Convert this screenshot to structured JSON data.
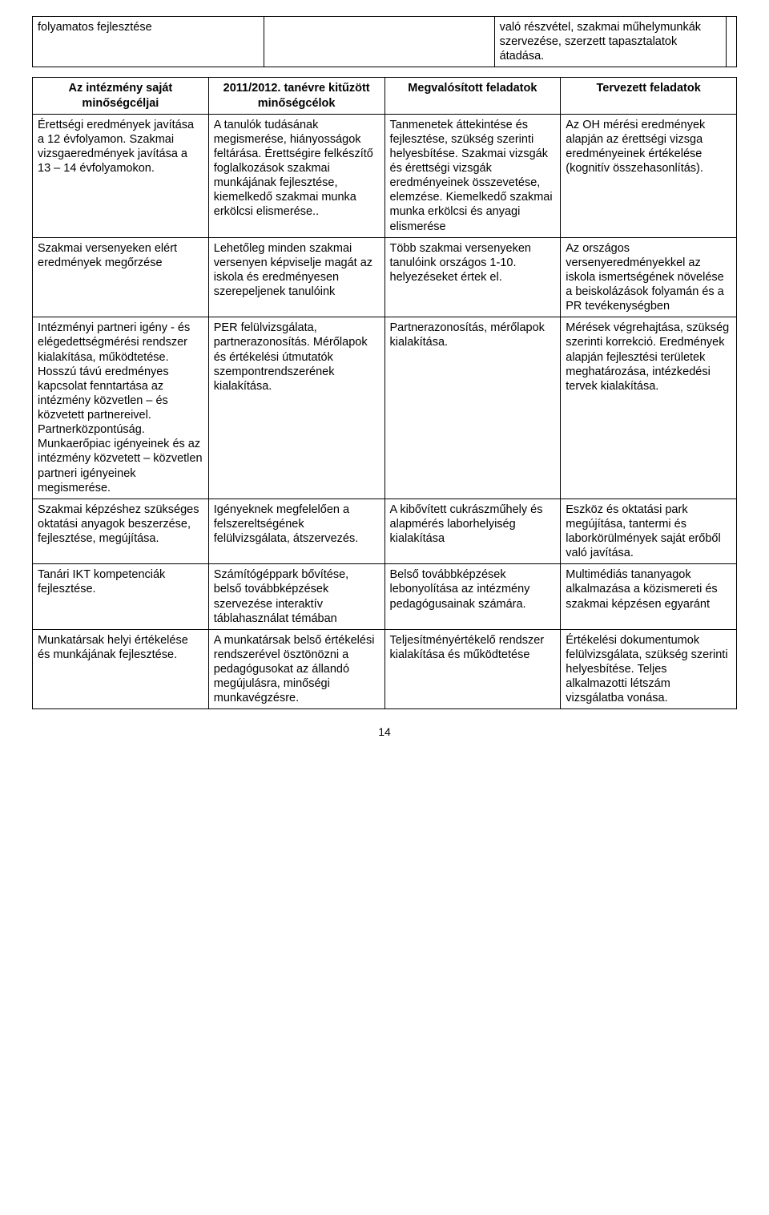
{
  "top_table": {
    "row": {
      "c1": "folyamatos fejlesztése",
      "c2": "",
      "c3": "való részvétel, szakmai műhelymunkák szervezése, szerzett tapasztalatok átadása.",
      "c4": ""
    }
  },
  "main_table": {
    "headers": {
      "h1": "Az intézmény saját minőségcéljai",
      "h2": "2011/2012. tanévre kitűzött minőségcélok",
      "h3": "Megvalósított feladatok",
      "h4": "Tervezett feladatok"
    },
    "rows": [
      {
        "c1": "Érettségi eredmények javítása a 12 évfolyamon. Szakmai vizsgaeredmények javítása a 13 – 14 évfolyamokon.",
        "c2": "A tanulók tudásának megismerése, hiányosságok feltárása. Érettségire felkészítő foglalkozások szakmai munkájának fejlesztése, kiemelkedő szakmai munka erkölcsi elismerése..",
        "c3": "Tanmenetek áttekintése és fejlesztése, szükség szerinti helyesbítése. Szakmai vizsgák és érettségi vizsgák eredményeinek összevetése, elemzése. Kiemelkedő szakmai munka erkölcsi és anyagi elismerése",
        "c4": "Az OH mérési eredmények alapján az érettségi vizsga eredményeinek értékelése (kognitív összehasonlítás)."
      },
      {
        "c1": "Szakmai versenyeken elért eredmények megőrzése",
        "c2": "Lehetőleg minden szakmai versenyen képviselje magát az iskola és eredményesen szerepeljenek tanulóink",
        "c3": "Több szakmai versenyeken tanulóink országos 1-10. helyezéseket értek el.",
        "c4": "Az országos versenyeredményekkel az iskola ismertségének növelése a beiskolázások folyamán és a PR tevékenységben"
      },
      {
        "c1": "Intézményi partneri igény - és elégedettségmérési rendszer kialakítása, működtetése. Hosszú távú eredményes kapcsolat fenntartása az intézmény közvetlen – és közvetett partnereivel. Partnerközpontúság. Munkaerőpiac igényeinek és az intézmény közvetett – közvetlen partneri igényeinek megismerése.",
        "c2": "PER felülvizsgálata, partnerazonosítás. Mérőlapok és értékelési útmutatók szempontrendszerének kialakítása.",
        "c3": "Partnerazonosítás, mérőlapok kialakítása.",
        "c4": "Mérések végrehajtása, szükség szerinti korrekció. Eredmények alapján fejlesztési területek meghatározása, intézkedési tervek kialakítása."
      },
      {
        "c1": "Szakmai képzéshez szükséges oktatási anyagok beszerzése, fejlesztése, megújítása.",
        "c2": "Igényeknek megfelelően a felszereltségének felülvizsgálata, átszervezés.",
        "c3": "A kibővített cukrászműhely és alapmérés laborhelyiség kialakítása",
        "c4": "Eszköz és oktatási park megújítása, tantermi és laborkörülmények saját erőből való javítása."
      },
      {
        "c1": "Tanári IKT kompetenciák fejlesztése.",
        "c2": "Számítógéppark bővítése, belső továbbképzések szervezése interaktív táblahasználat témában",
        "c3": "Belső továbbképzések lebonyolítása az intézmény pedagógusainak számára.",
        "c4": "Multimédiás tananyagok alkalmazása a közismereti és szakmai képzésen egyaránt"
      },
      {
        "c1": "Munkatársak helyi értékelése és munkájának fejlesztése.",
        "c2": "A munkatársak belső értékelési rendszerével ösztönözni a pedagógusokat az állandó megújulásra, minőségi munkavégzésre.",
        "c3": "Teljesítményértékelő rendszer kialakítása és működtetése",
        "c4": "Értékelési dokumentumok felülvizsgálata, szükség szerinti helyesbítése. Teljes alkalmazotti létszám vizsgálatba vonása."
      }
    ]
  },
  "page_number": "14"
}
